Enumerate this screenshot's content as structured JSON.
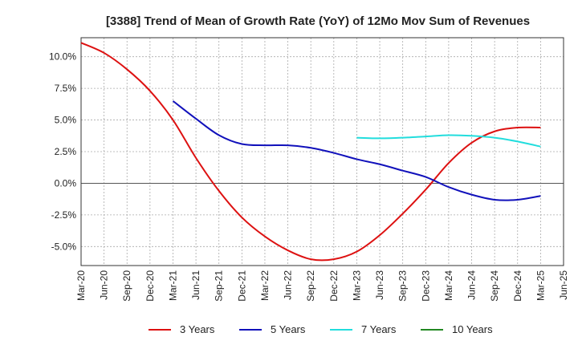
{
  "chart_data": {
    "type": "line",
    "title": "[3388]  Trend of Mean of Growth Rate (YoY) of 12Mo Mov Sum of Revenues",
    "xlabel": "",
    "ylabel": "",
    "x_ticks": [
      "Mar-20",
      "Jun-20",
      "Sep-20",
      "Dec-20",
      "Mar-21",
      "Jun-21",
      "Sep-21",
      "Dec-21",
      "Mar-22",
      "Jun-22",
      "Sep-22",
      "Dec-22",
      "Mar-23",
      "Jun-23",
      "Sep-23",
      "Dec-23",
      "Mar-24",
      "Jun-24",
      "Sep-24",
      "Dec-24",
      "Mar-25",
      "Jun-25"
    ],
    "y_ticks": [
      -5.0,
      -2.5,
      0.0,
      2.5,
      5.0,
      7.5,
      10.0
    ],
    "y_tick_labels": [
      "-5.0%",
      "-2.5%",
      "0.0%",
      "2.5%",
      "5.0%",
      "7.5%",
      "10.0%"
    ],
    "ylim": [
      -6.5,
      11.5
    ],
    "grid": true,
    "legend_position": "bottom",
    "series": [
      {
        "name": "3 Years",
        "color": "#dd1111",
        "x_index": [
          0,
          1,
          2,
          3,
          4,
          5,
          6,
          7,
          8,
          9,
          10,
          11,
          12,
          13,
          14,
          15,
          16,
          17,
          18,
          19,
          20
        ],
        "values": [
          11.1,
          10.3,
          9.0,
          7.3,
          5.0,
          2.0,
          -0.6,
          -2.7,
          -4.2,
          -5.3,
          -6.0,
          -6.0,
          -5.4,
          -4.1,
          -2.4,
          -0.5,
          1.6,
          3.2,
          4.1,
          4.4,
          4.4
        ]
      },
      {
        "name": "5 Years",
        "color": "#1111bb",
        "x_index": [
          4,
          5,
          6,
          7,
          8,
          9,
          10,
          11,
          12,
          13,
          14,
          15,
          16,
          17,
          18,
          19,
          20
        ],
        "values": [
          6.5,
          5.1,
          3.8,
          3.1,
          3.0,
          3.0,
          2.8,
          2.4,
          1.9,
          1.5,
          1.0,
          0.5,
          -0.3,
          -0.9,
          -1.3,
          -1.3,
          -1.0
        ]
      },
      {
        "name": "7 Years",
        "color": "#22dddd",
        "x_index": [
          12,
          13,
          14,
          15,
          16,
          17,
          18,
          19,
          20
        ],
        "values": [
          3.6,
          3.55,
          3.6,
          3.7,
          3.8,
          3.75,
          3.6,
          3.3,
          2.9
        ]
      },
      {
        "name": "10 Years",
        "color": "#228822",
        "x_index": [],
        "values": []
      }
    ]
  }
}
